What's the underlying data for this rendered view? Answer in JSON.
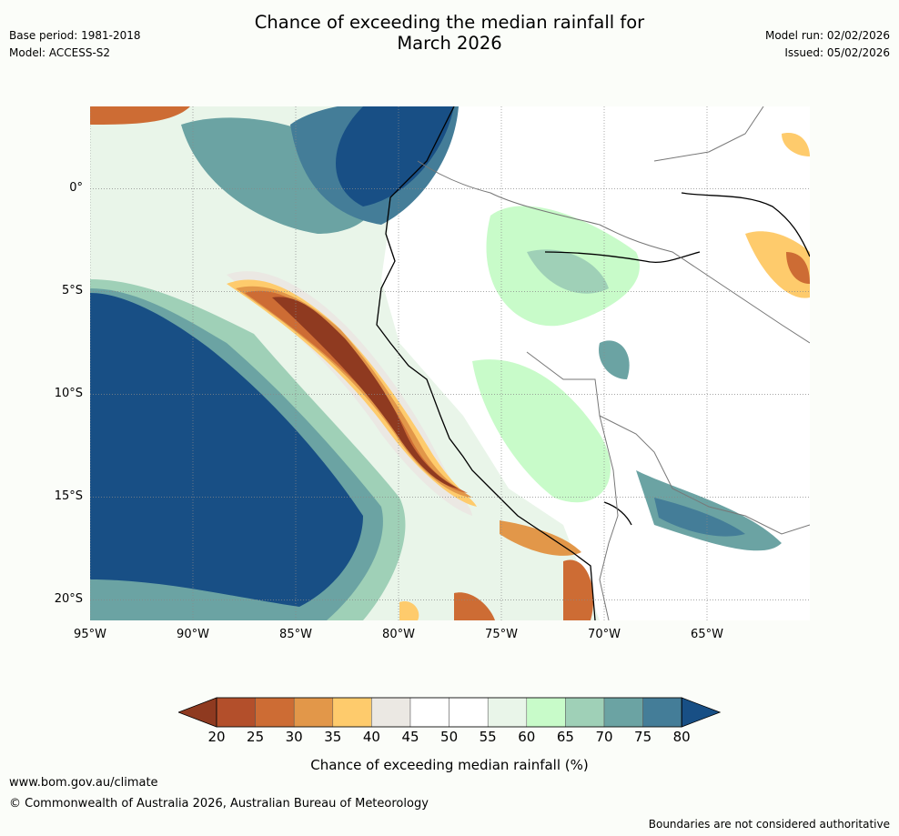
{
  "header": {
    "base_period": "Base period: 1981-2018",
    "model": "Model: ACCESS-S2",
    "title_line1": "Chance of exceeding the median rainfall for",
    "title_line2": "March 2026",
    "model_run": "Model run: 02/02/2026",
    "issued": "Issued: 05/02/2026"
  },
  "map": {
    "lat_labels": [
      "0°",
      "5°S",
      "10°S",
      "15°S",
      "20°S"
    ],
    "lon_labels": [
      "95°W",
      "90°W",
      "85°W",
      "80°W",
      "75°W",
      "70°W",
      "65°W"
    ],
    "lat_values": [
      0,
      -5,
      -10,
      -15,
      -20
    ],
    "lon_values": [
      -95,
      -90,
      -85,
      -80,
      -75,
      -70,
      -65
    ],
    "extent": {
      "lon_min": -95,
      "lon_max": -60,
      "lat_min": -21,
      "lat_max": 4
    }
  },
  "colorbar": {
    "ticks": [
      "20",
      "25",
      "30",
      "35",
      "40",
      "45",
      "50",
      "55",
      "60",
      "65",
      "70",
      "75",
      "80"
    ],
    "colors": [
      "#8f3a20",
      "#b34f2b",
      "#cd6c34",
      "#e29749",
      "#fecb6c",
      "#ebe8e3",
      "#ffffff",
      "#ffffff",
      "#e9f5e9",
      "#c8fbc9",
      "#9fd0b7",
      "#6ba3a3",
      "#447d98",
      "#184f85"
    ],
    "label": "Chance of exceeding median rainfall (%)"
  },
  "footer": {
    "website": "www.bom.gov.au/climate",
    "copyright": "© Commonwealth of Australia 2026, Australian Bureau of Meteorology",
    "disclaimer": "Boundaries are not considered authoritative"
  }
}
